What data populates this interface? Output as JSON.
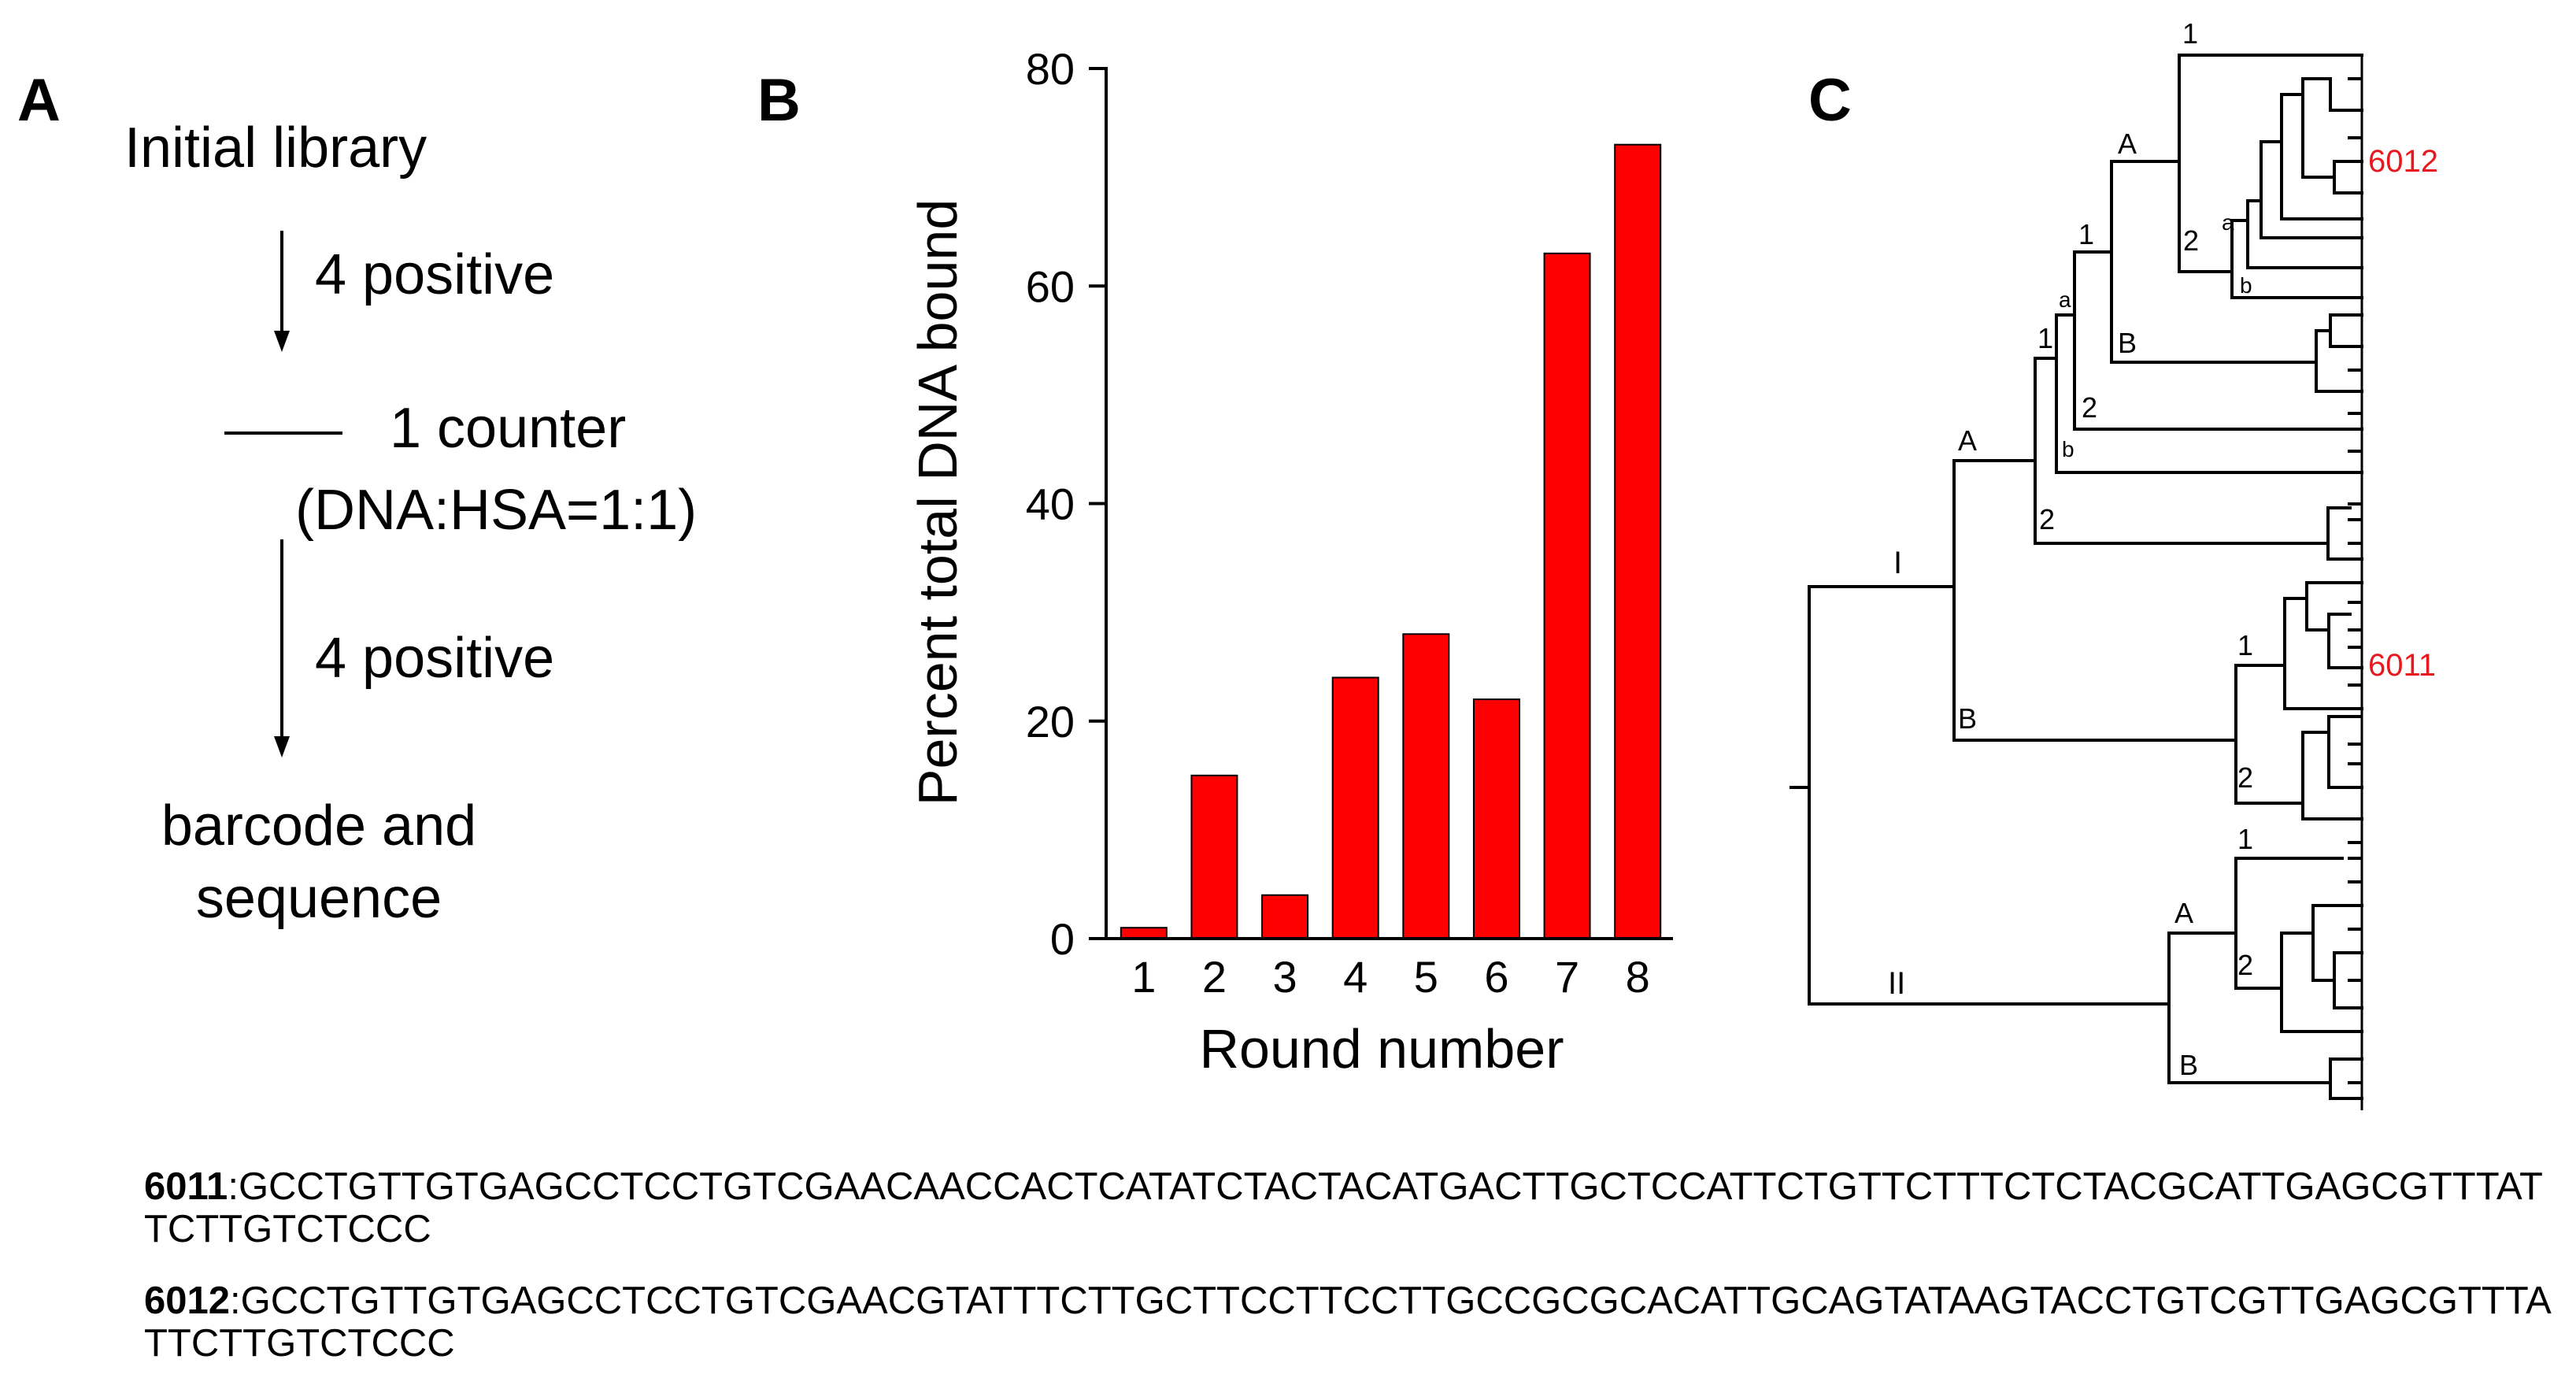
{
  "panels": {
    "a": "A",
    "b": "B",
    "c": "C"
  },
  "flowchart": {
    "initial": "Initial library",
    "step1": "4 positive",
    "counter_label": "1 counter",
    "counter_ratio": "(DNA:HSA=1:1)",
    "step2": "4 positive",
    "final_line1": "barcode and",
    "final_line2": "sequence"
  },
  "chart_data": {
    "type": "bar",
    "categories": [
      "1",
      "2",
      "3",
      "4",
      "5",
      "6",
      "7",
      "8"
    ],
    "values": [
      1,
      15,
      4,
      24,
      28,
      22,
      63,
      73
    ],
    "ylim": [
      0,
      80
    ],
    "yticks": [
      "0",
      "20",
      "40",
      "60",
      "80"
    ],
    "xlabel": "Round number",
    "ylabel": "Percent total DNA bound",
    "bar_color": "#ff0000",
    "grid": false
  },
  "tree": {
    "labels": {
      "I": "I",
      "II": "II",
      "IA": "A",
      "IB": "B",
      "IA1": "1",
      "IA2": "2",
      "IA1a": "a",
      "IA1b": "b",
      "IA1a1": "1",
      "IA1a2": "2",
      "IA1a1A": "A",
      "IA1a1B": "B",
      "IA1a1A1": "1",
      "IA1a1A2": "2",
      "IA1a1A2a": "a",
      "IA1a1A2b": "b",
      "IB1": "1",
      "IB2": "2",
      "IIA": "A",
      "IIB": "B",
      "IIA1": "1",
      "IIA2": "2"
    },
    "highlight_color": "#e8191e",
    "highlights": {
      "h6012": "6012",
      "h6011": "6011"
    }
  },
  "sequences": [
    {
      "id": "6011",
      "sep": ":",
      "text": "GCCTGTTGTGAGCCTCCTGTCGAACAACCACTCATATCTACTACATGACTTGCTCCATTCTGTTCTTTCTCTACGCATTGAGCGTTTATTCTTGTCTCCC"
    },
    {
      "id": "6012",
      "sep": ":",
      "text": "GCCTGTTGTGAGCCTCCTGTCGAACGTATTTCTTGCTTCCTTCCTTGCCGCGCACATTGCAGTATAAGTACCTGTCGTTGAGCGTTTATTCTTGTCTCCC"
    }
  ]
}
